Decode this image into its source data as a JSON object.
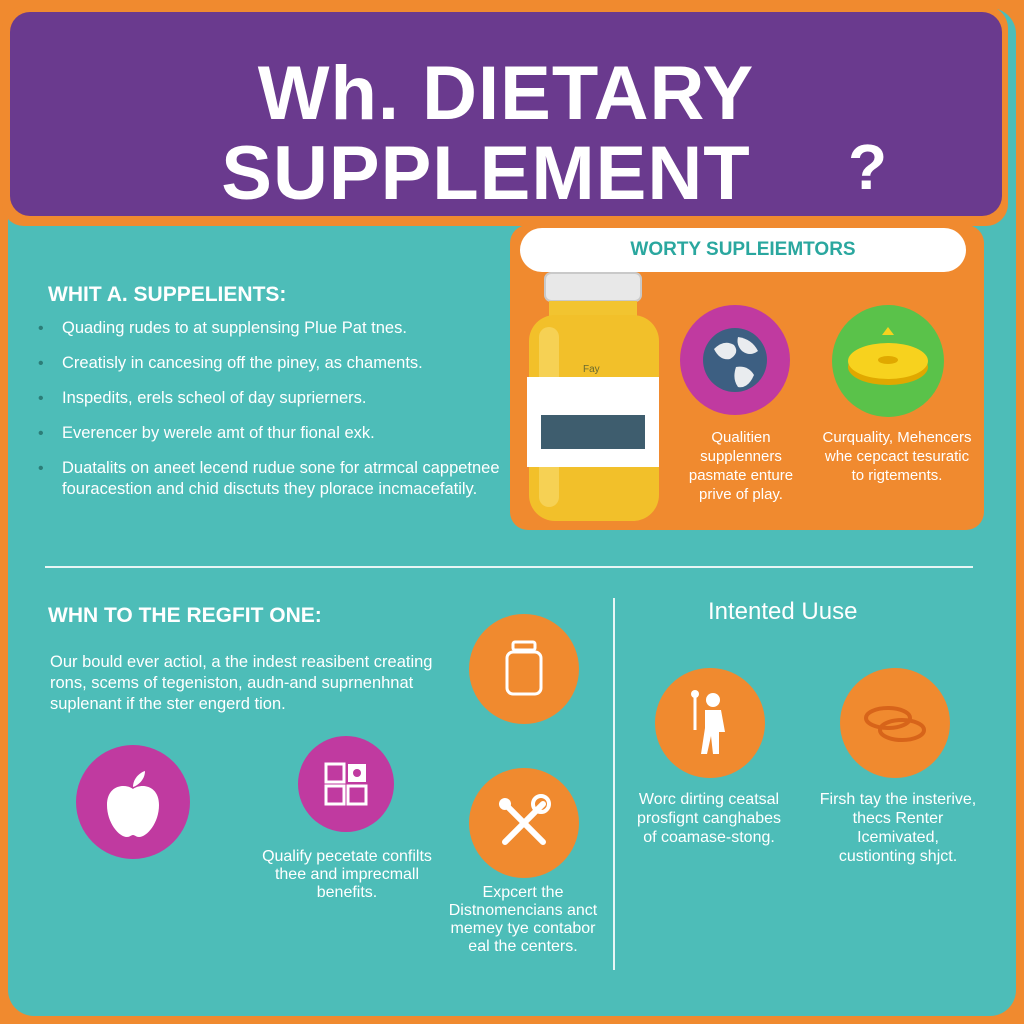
{
  "header": {
    "title_line1": "Wh. DIETARY",
    "title_line2": "SUPPLEMENT",
    "title_qmark": "?"
  },
  "left_section": {
    "title": "WHIT A. SUPPELIENTS:",
    "bullets": [
      "Quading rudes to at supplensing Plue Pat tnes.",
      "Creatisly in cancesing off the piney, as chaments.",
      "Inspedits, erels scheol of day suprierners.",
      "Everencer by werele amt of thur fional exk.",
      "Duatalits on aneet lecend rudue sone for atrmcal cappetnee fouracestion and chid disctuts they plorace incmacefatily."
    ]
  },
  "right_panel": {
    "pill_label": "WORTY SUPLEIEMTORS",
    "bottle_label": "Fay",
    "caption_globe": "Qualitien supplenners pasmate enture prive of play.",
    "caption_pill": "Curquality, Mehencers whe cepcact tesuratic to rigtements."
  },
  "bottom_left": {
    "title": "WHN TO THE REGFIT ONE:",
    "paragraph": "Our bould ever actiol, a the indest reasibent creating rons, scems of tegeniston, audn-and suprnenhnat suplenant if the ster engerd tion.",
    "caption_icons": "Qualify pecetate confilts thee and imprecmall benefits.",
    "caption_tools": "Expcert the Distnomencians anct memey tye contabor eal the centers."
  },
  "bottom_right": {
    "title": "Intented Uuse",
    "caption_person": "Worc dirting ceatsal prosfignt canghabes of coamase-stong.",
    "caption_pills": "Firsh tay the insterive, thecs Renter Icemivated, custionting shjct."
  },
  "colors": {
    "orange": "#f08a2f",
    "teal": "#4dbdb8",
    "purple": "#6a3a8e",
    "magenta": "#c03aa0",
    "green": "#5ac24a"
  },
  "icons": [
    "bottle-icon",
    "globe-icon",
    "pill-icon",
    "apple-icon",
    "grid-icon",
    "jar-icon",
    "tools-icon",
    "person-icon",
    "capsules-icon"
  ]
}
